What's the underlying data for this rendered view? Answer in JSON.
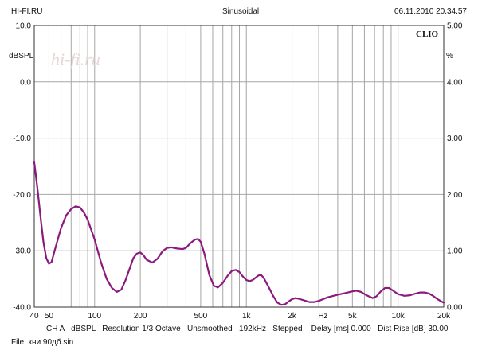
{
  "header": {
    "left": "HI-FI.RU",
    "center": "Sinusoidal",
    "right": "06.11.2010 20.34.57"
  },
  "chart_data": {
    "type": "line",
    "xscale": "log",
    "xlim": [
      40,
      20000
    ],
    "ylim": [
      -40,
      10
    ],
    "y2lim": [
      0,
      5
    ],
    "grid": true,
    "ylabel": "dBSPL",
    "y2label": "%",
    "brand": "CLIO",
    "watermark": "hi-fi.ru",
    "xticks": [
      {
        "v": 40,
        "label": "40"
      },
      {
        "v": 50,
        "label": "50"
      },
      {
        "v": 100,
        "label": "100"
      },
      {
        "v": 200,
        "label": "200"
      },
      {
        "v": 500,
        "label": "500"
      },
      {
        "v": 1000,
        "label": "1k"
      },
      {
        "v": 2000,
        "label": "2k"
      },
      {
        "v": 3200,
        "label": "Hz"
      },
      {
        "v": 5000,
        "label": "5k"
      },
      {
        "v": 10000,
        "label": "10k"
      },
      {
        "v": 20000,
        "label": "20k"
      }
    ],
    "xgrid": [
      50,
      60,
      70,
      80,
      90,
      100,
      200,
      300,
      400,
      500,
      600,
      700,
      800,
      900,
      1000,
      2000,
      3000,
      4000,
      5000,
      6000,
      7000,
      8000,
      9000,
      10000,
      20000
    ],
    "yticks": [
      {
        "v": 10,
        "label": "10.0"
      },
      {
        "v": 0,
        "label": "0.0"
      },
      {
        "v": -10,
        "label": "-10.0"
      },
      {
        "v": -20,
        "label": "-20.0"
      },
      {
        "v": -30,
        "label": "-30.0"
      },
      {
        "v": -40,
        "label": "-40.0"
      }
    ],
    "y2ticks": [
      {
        "v": 5,
        "label": "5.00"
      },
      {
        "v": 4,
        "label": "4.00"
      },
      {
        "v": 3,
        "label": "3.00"
      },
      {
        "v": 2,
        "label": "2.00"
      },
      {
        "v": 1,
        "label": "1.00"
      },
      {
        "v": 0,
        "label": "0.00"
      }
    ],
    "series": [
      {
        "color": "#8b1a7e",
        "points": [
          [
            40,
            -14.3
          ],
          [
            42,
            -19
          ],
          [
            44,
            -24
          ],
          [
            46,
            -28.5
          ],
          [
            48,
            -31.3
          ],
          [
            50,
            -32.3
          ],
          [
            52,
            -32
          ],
          [
            55,
            -29.6
          ],
          [
            60,
            -26
          ],
          [
            65,
            -23.7
          ],
          [
            70,
            -22.6
          ],
          [
            75,
            -22.1
          ],
          [
            80,
            -22.3
          ],
          [
            85,
            -23.2
          ],
          [
            90,
            -24.5
          ],
          [
            100,
            -28
          ],
          [
            110,
            -32
          ],
          [
            120,
            -35
          ],
          [
            130,
            -36.6
          ],
          [
            140,
            -37.3
          ],
          [
            150,
            -36.9
          ],
          [
            160,
            -35.2
          ],
          [
            170,
            -33.2
          ],
          [
            180,
            -31.3
          ],
          [
            190,
            -30.5
          ],
          [
            200,
            -30.3
          ],
          [
            210,
            -30.8
          ],
          [
            220,
            -31.6
          ],
          [
            240,
            -32.1
          ],
          [
            260,
            -31.4
          ],
          [
            280,
            -30.1
          ],
          [
            300,
            -29.5
          ],
          [
            320,
            -29.4
          ],
          [
            350,
            -29.6
          ],
          [
            380,
            -29.7
          ],
          [
            400,
            -29.5
          ],
          [
            430,
            -28.6
          ],
          [
            460,
            -28
          ],
          [
            480,
            -27.9
          ],
          [
            500,
            -28.4
          ],
          [
            530,
            -30.6
          ],
          [
            570,
            -34.3
          ],
          [
            610,
            -36.2
          ],
          [
            650,
            -36.5
          ],
          [
            700,
            -35.7
          ],
          [
            750,
            -34.5
          ],
          [
            800,
            -33.6
          ],
          [
            850,
            -33.4
          ],
          [
            900,
            -33.8
          ],
          [
            950,
            -34.6
          ],
          [
            1000,
            -35.2
          ],
          [
            1050,
            -35.4
          ],
          [
            1100,
            -35.2
          ],
          [
            1200,
            -34.4
          ],
          [
            1250,
            -34.3
          ],
          [
            1300,
            -34.8
          ],
          [
            1400,
            -36.4
          ],
          [
            1500,
            -38
          ],
          [
            1600,
            -39.2
          ],
          [
            1700,
            -39.6
          ],
          [
            1800,
            -39.5
          ],
          [
            1900,
            -39.0
          ],
          [
            2000,
            -38.6
          ],
          [
            2100,
            -38.4
          ],
          [
            2200,
            -38.5
          ],
          [
            2400,
            -38.8
          ],
          [
            2600,
            -39.1
          ],
          [
            2800,
            -39.1
          ],
          [
            3000,
            -38.9
          ],
          [
            3400,
            -38.3
          ],
          [
            4000,
            -37.8
          ],
          [
            4500,
            -37.5
          ],
          [
            5000,
            -37.2
          ],
          [
            5300,
            -37.1
          ],
          [
            5700,
            -37.3
          ],
          [
            6200,
            -37.9
          ],
          [
            6800,
            -38.4
          ],
          [
            7200,
            -38.1
          ],
          [
            7700,
            -37.2
          ],
          [
            8200,
            -36.6
          ],
          [
            8700,
            -36.6
          ],
          [
            9300,
            -37.1
          ],
          [
            10000,
            -37.7
          ],
          [
            11000,
            -38.0
          ],
          [
            12000,
            -37.9
          ],
          [
            13000,
            -37.6
          ],
          [
            14000,
            -37.4
          ],
          [
            15000,
            -37.4
          ],
          [
            16000,
            -37.6
          ],
          [
            17000,
            -38.0
          ],
          [
            18000,
            -38.5
          ],
          [
            19000,
            -38.9
          ],
          [
            20000,
            -39.2
          ]
        ]
      }
    ]
  },
  "footer": {
    "channel": "CH A",
    "unit": "dBSPL",
    "resolution": "Resolution 1/3 Octave",
    "smoothing": "Unsmoothed",
    "rate": "192kHz",
    "mode": "Stepped",
    "delay": "Delay [ms] 0.000",
    "dist_rise": "Dist Rise [dB] 30.00",
    "file": "File: кни 90дб.sin"
  }
}
